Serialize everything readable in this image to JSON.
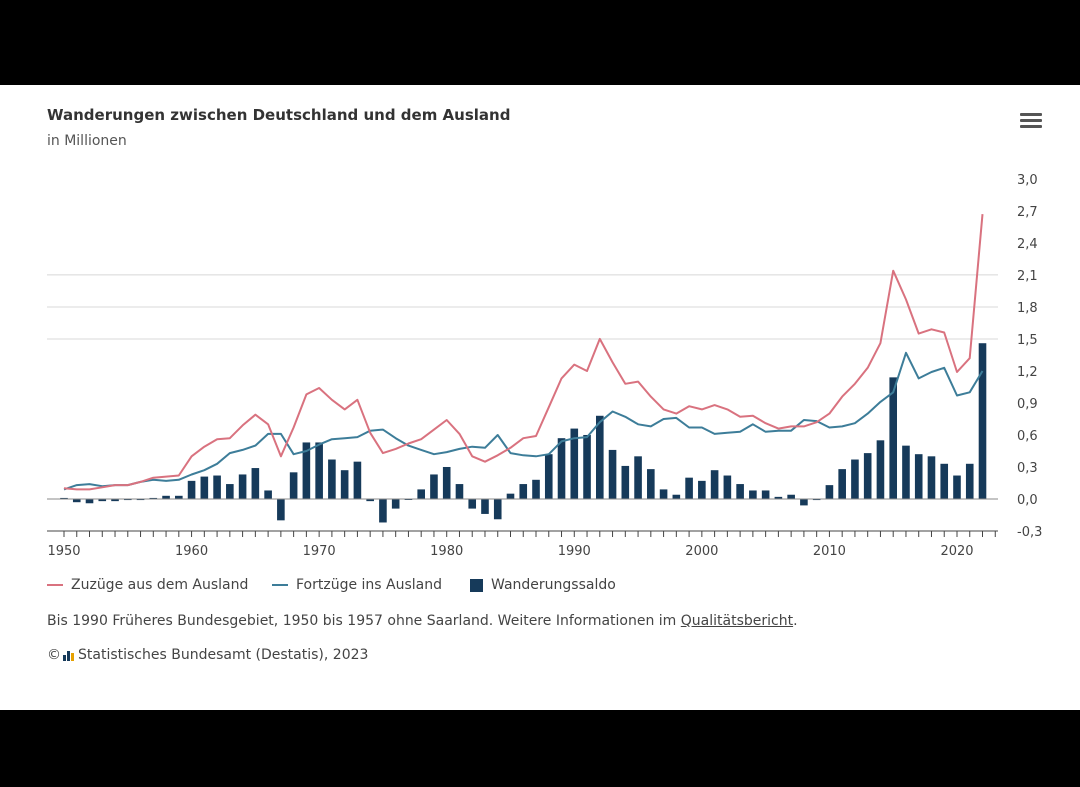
{
  "header": {
    "title": "Wanderungen zwischen Deutschland und dem Ausland",
    "subtitle": "in Millionen",
    "menu_icon": "hamburger-menu-icon"
  },
  "legend": [
    {
      "label": "Zuzüge aus dem Ausland",
      "color": "#d9727f",
      "kind": "line"
    },
    {
      "label": "Fortzüge ins Ausland",
      "color": "#3d7d99",
      "kind": "line"
    },
    {
      "label": "Wanderungssaldo",
      "color": "#163a5a",
      "kind": "bar"
    }
  ],
  "footer": {
    "note_before": "Bis 1990 Früheres Bundesgebiet, 1950 bis 1957 ohne Saarland. Weitere Informationen im ",
    "note_link": "Qualitätsbericht",
    "note_after": ".",
    "copyright": "©",
    "source": "Statistisches Bundesamt (Destatis), 2023"
  },
  "chart_data": {
    "type": "bar+line",
    "title": "Wanderungen zwischen Deutschland und dem Ausland",
    "subtitle": "in Millionen",
    "xlim": [
      1950,
      2022
    ],
    "ylim": [
      -0.3,
      3.0
    ],
    "y_axis_position": "right",
    "y_ticks": [
      "3,0",
      "2,7",
      "2,4",
      "2,1",
      "1,8",
      "1,5",
      "1,2",
      "0,9",
      "0,6",
      "0,3",
      "0,0",
      "-0,3"
    ],
    "y_tick_values": [
      3.0,
      2.7,
      2.4,
      2.1,
      1.8,
      1.5,
      1.2,
      0.9,
      0.6,
      0.3,
      0.0,
      -0.3
    ],
    "x_ticks": [
      "1950",
      "1960",
      "1970",
      "1980",
      "1990",
      "2000",
      "2010",
      "2020"
    ],
    "x_tick_values": [
      1950,
      1960,
      1970,
      1980,
      1990,
      2000,
      2010,
      2020
    ],
    "gridlines": [
      1.5,
      1.8,
      2.1
    ],
    "legend_position": "bottom-left",
    "start_year": 1950,
    "series": [
      {
        "name": "Zuzüge aus dem Ausland",
        "type": "line",
        "color": "#d9727f",
        "values": [
          0.1,
          0.09,
          0.09,
          0.11,
          0.13,
          0.13,
          0.16,
          0.2,
          0.21,
          0.22,
          0.4,
          0.49,
          0.56,
          0.57,
          0.69,
          0.79,
          0.7,
          0.4,
          0.67,
          0.98,
          1.04,
          0.93,
          0.84,
          0.93,
          0.62,
          0.43,
          0.47,
          0.52,
          0.56,
          0.65,
          0.74,
          0.61,
          0.4,
          0.35,
          0.41,
          0.48,
          0.57,
          0.59,
          0.86,
          1.13,
          1.26,
          1.2,
          1.5,
          1.28,
          1.08,
          1.1,
          0.96,
          0.84,
          0.8,
          0.87,
          0.84,
          0.88,
          0.84,
          0.77,
          0.78,
          0.71,
          0.66,
          0.68,
          0.68,
          0.72,
          0.8,
          0.96,
          1.08,
          1.23,
          1.46,
          2.14,
          1.87,
          1.55,
          1.59,
          1.56,
          1.19,
          1.32,
          2.67
        ]
      },
      {
        "name": "Fortzüge ins Ausland",
        "type": "line",
        "color": "#3d7d99",
        "values": [
          0.09,
          0.13,
          0.14,
          0.12,
          0.13,
          0.13,
          0.16,
          0.18,
          0.17,
          0.18,
          0.23,
          0.27,
          0.33,
          0.43,
          0.46,
          0.5,
          0.61,
          0.61,
          0.42,
          0.45,
          0.51,
          0.56,
          0.57,
          0.58,
          0.64,
          0.65,
          0.57,
          0.5,
          0.46,
          0.42,
          0.44,
          0.47,
          0.49,
          0.48,
          0.6,
          0.43,
          0.41,
          0.4,
          0.42,
          0.54,
          0.57,
          0.58,
          0.72,
          0.82,
          0.77,
          0.7,
          0.68,
          0.75,
          0.76,
          0.67,
          0.67,
          0.61,
          0.62,
          0.63,
          0.7,
          0.63,
          0.64,
          0.64,
          0.74,
          0.73,
          0.67,
          0.68,
          0.71,
          0.8,
          0.91,
          1.0,
          1.37,
          1.13,
          1.19,
          1.23,
          0.97,
          1.0,
          1.2
        ]
      },
      {
        "name": "Wanderungssaldo",
        "type": "bar",
        "color": "#163a5a",
        "values": [
          0.01,
          -0.03,
          -0.04,
          -0.02,
          -0.02,
          -0.01,
          -0.01,
          0.01,
          0.03,
          0.03,
          0.17,
          0.21,
          0.22,
          0.14,
          0.23,
          0.29,
          0.08,
          -0.2,
          0.25,
          0.53,
          0.53,
          0.37,
          0.27,
          0.35,
          -0.02,
          -0.22,
          -0.09,
          0.0,
          0.09,
          0.23,
          0.3,
          0.14,
          -0.09,
          -0.14,
          -0.19,
          0.05,
          0.14,
          0.18,
          0.42,
          0.57,
          0.66,
          0.6,
          0.78,
          0.46,
          0.31,
          0.4,
          0.28,
          0.09,
          0.04,
          0.2,
          0.17,
          0.27,
          0.22,
          0.14,
          0.08,
          0.08,
          0.02,
          0.04,
          -0.06,
          -0.01,
          0.13,
          0.28,
          0.37,
          0.43,
          0.55,
          1.14,
          0.5,
          0.42,
          0.4,
          0.33,
          0.22,
          0.33,
          1.46
        ]
      }
    ]
  }
}
